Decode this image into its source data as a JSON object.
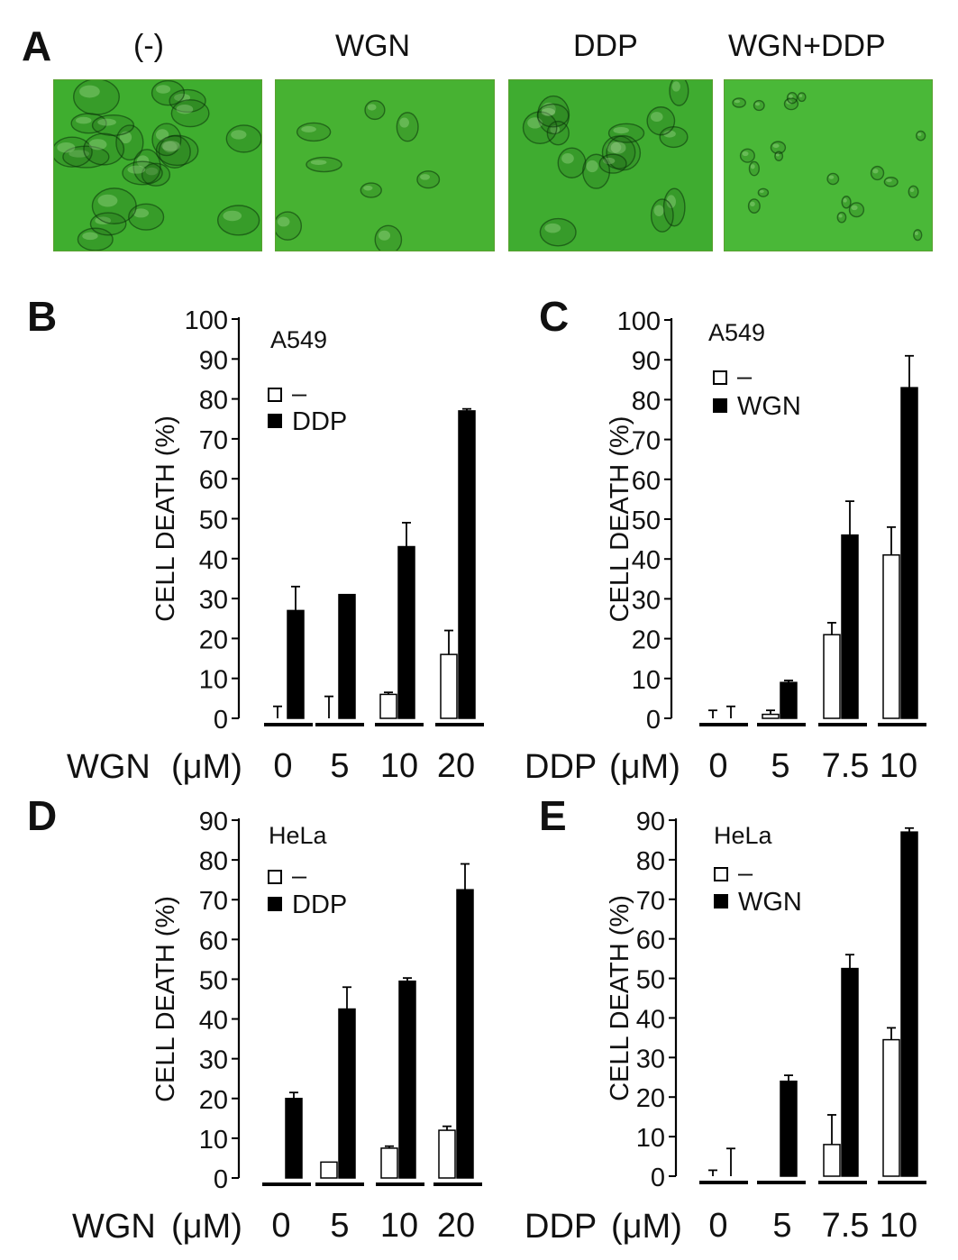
{
  "panels": {
    "A": {
      "letter": "A"
    },
    "B": {
      "letter": "B"
    },
    "C": {
      "letter": "C"
    },
    "D": {
      "letter": "D"
    },
    "E": {
      "letter": "E"
    }
  },
  "micrographs": [
    {
      "label": "(-)",
      "tint": "#3fae2f",
      "cell_style": "spread"
    },
    {
      "label": "WGN",
      "tint": "#47b232",
      "cell_style": "sparse"
    },
    {
      "label": "DDP",
      "tint": "#3fac30",
      "cell_style": "rounded"
    },
    {
      "label": "WGN+DDP",
      "tint": "#4ab838",
      "cell_style": "dead"
    }
  ],
  "colors": {
    "filled": "#000000",
    "open": "#ffffff",
    "stroke": "#000000"
  },
  "chart_data": [
    {
      "panel": "B",
      "type": "bar",
      "cell_line": "A549",
      "ylabel": "CELL DEATH (%)",
      "xlabel": "WGN",
      "xunit": "(μM)",
      "ylim": [
        0,
        100
      ],
      "yticks": [
        0,
        10,
        20,
        30,
        40,
        50,
        60,
        70,
        80,
        90,
        100
      ],
      "categories": [
        "0",
        "5",
        "10",
        "20"
      ],
      "legend": [
        "–",
        "DDP"
      ],
      "series": [
        {
          "name": "–",
          "fill": "open",
          "values": [
            0,
            0,
            6,
            16
          ],
          "errors": [
            3,
            5.5,
            0.5,
            6
          ]
        },
        {
          "name": "DDP",
          "fill": "filled",
          "values": [
            27,
            31,
            43,
            77
          ],
          "errors": [
            6,
            0,
            6,
            0.5
          ]
        }
      ]
    },
    {
      "panel": "C",
      "type": "bar",
      "cell_line": "A549",
      "ylabel": "CELL DEATH (%)",
      "xlabel": "DDP",
      "xunit": "(μM)",
      "ylim": [
        0,
        100
      ],
      "yticks": [
        0,
        10,
        20,
        30,
        40,
        50,
        60,
        70,
        80,
        90,
        100
      ],
      "categories": [
        "0",
        "5",
        "7.5",
        "10"
      ],
      "legend": [
        "–",
        "WGN"
      ],
      "series": [
        {
          "name": "–",
          "fill": "open",
          "values": [
            0,
            1,
            21,
            41
          ],
          "errors": [
            2,
            1,
            3,
            7
          ]
        },
        {
          "name": "WGN",
          "fill": "filled",
          "values": [
            0,
            9,
            46,
            83
          ],
          "errors": [
            3,
            0.5,
            8.5,
            8
          ]
        }
      ]
    },
    {
      "panel": "D",
      "type": "bar",
      "cell_line": "HeLa",
      "ylabel": "CELL DEATH (%)",
      "xlabel": "WGN",
      "xunit": "(μM)",
      "ylim": [
        0,
        90
      ],
      "yticks": [
        0,
        10,
        20,
        30,
        40,
        50,
        60,
        70,
        80,
        90
      ],
      "categories": [
        "0",
        "5",
        "10",
        "20"
      ],
      "legend": [
        "–",
        "DDP"
      ],
      "series": [
        {
          "name": "–",
          "fill": "open",
          "values": [
            0,
            4,
            7.5,
            12
          ],
          "errors": [
            0,
            0,
            0.5,
            1
          ]
        },
        {
          "name": "DDP",
          "fill": "filled",
          "values": [
            20,
            42.5,
            49.5,
            72.5
          ],
          "errors": [
            1.5,
            5.5,
            0.8,
            6.5
          ]
        }
      ]
    },
    {
      "panel": "E",
      "type": "bar",
      "cell_line": "HeLa",
      "ylabel": "CELL DEATH (%)",
      "xlabel": "DDP",
      "xunit": "(μM)",
      "ylim": [
        0,
        90
      ],
      "yticks": [
        0,
        10,
        20,
        30,
        40,
        50,
        60,
        70,
        80,
        90
      ],
      "categories": [
        "0",
        "5",
        "7.5",
        "10"
      ],
      "legend": [
        "–",
        "WGN"
      ],
      "series": [
        {
          "name": "–",
          "fill": "open",
          "values": [
            0,
            0,
            8,
            34.5
          ],
          "errors": [
            1.5,
            0,
            7.5,
            3
          ]
        },
        {
          "name": "WGN",
          "fill": "filled",
          "values": [
            0,
            24,
            52.5,
            87
          ],
          "errors": [
            7,
            1.5,
            3.5,
            1
          ]
        }
      ]
    }
  ]
}
